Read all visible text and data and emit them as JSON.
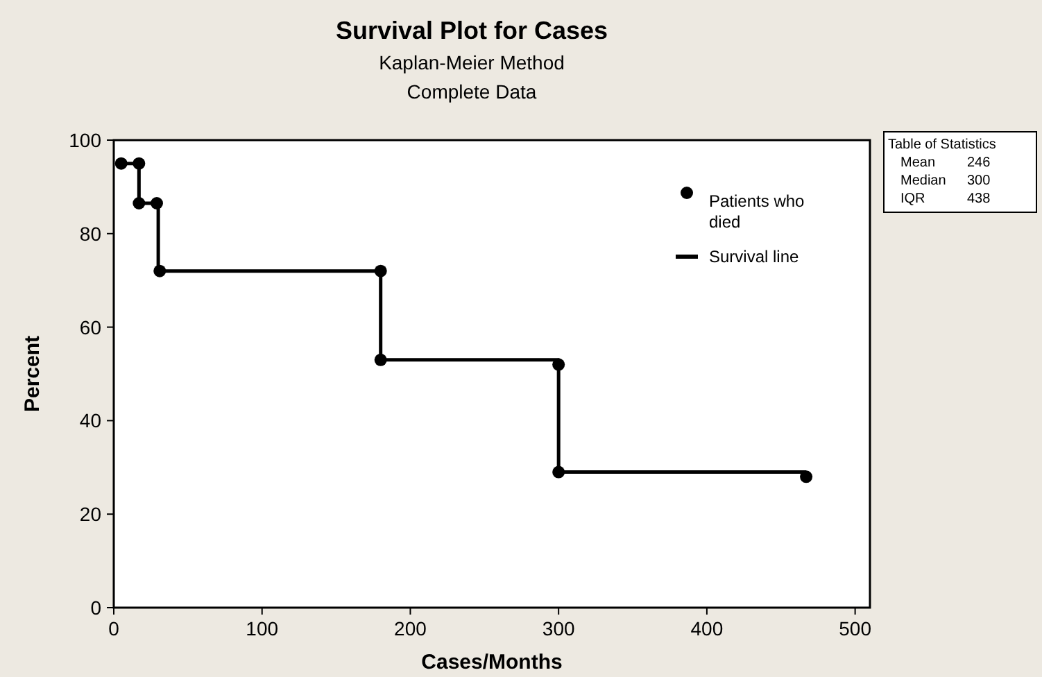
{
  "chart_data": {
    "type": "line",
    "title": "Survival Plot for Cases",
    "subtitle": "Kaplan-Meier Method\nComplete Data",
    "xlabel": "Cases/Months",
    "ylabel": "Percent",
    "series": [
      {
        "name": "Patients who died",
        "type": "scatter",
        "color": "#000000",
        "marker": "circle",
        "x": [
          5,
          17,
          17,
          29,
          31,
          180,
          180,
          300,
          300,
          467
        ],
        "values": [
          95,
          95,
          86.5,
          86.5,
          72,
          72,
          53,
          52,
          29,
          28
        ]
      },
      {
        "name": "Survival line",
        "color": "#000000",
        "marker": "none",
        "line_style": "solid",
        "x": [
          5,
          17,
          17,
          30,
          30,
          180,
          180,
          300,
          300,
          467
        ],
        "values": [
          95,
          95,
          86.5,
          86.5,
          72,
          72,
          53,
          53,
          29,
          29
        ]
      }
    ],
    "xlim": [
      0,
      510
    ],
    "ylim": [
      0,
      100
    ],
    "xticks": [
      0,
      100,
      200,
      300,
      400,
      500
    ],
    "yticks": [
      0,
      20,
      40,
      60,
      80,
      100
    ],
    "grid": false,
    "legend": "top right",
    "annotations": [
      "Table of Statistics",
      "Mean 246",
      "Median 300",
      "IQR 438"
    ]
  }
}
